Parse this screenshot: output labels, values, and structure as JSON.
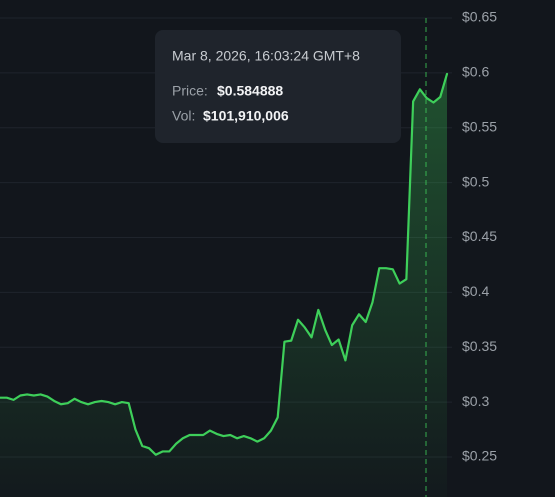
{
  "chart_data": {
    "type": "line",
    "color": "#3ecf5a",
    "values": [
      0.304,
      0.304,
      0.302,
      0.306,
      0.307,
      0.306,
      0.307,
      0.305,
      0.301,
      0.298,
      0.299,
      0.303,
      0.3,
      0.298,
      0.3,
      0.301,
      0.3,
      0.298,
      0.3,
      0.299,
      0.275,
      0.26,
      0.258,
      0.252,
      0.255,
      0.255,
      0.262,
      0.267,
      0.27,
      0.27,
      0.27,
      0.274,
      0.271,
      0.269,
      0.27,
      0.267,
      0.269,
      0.267,
      0.264,
      0.267,
      0.274,
      0.286,
      0.355,
      0.356,
      0.375,
      0.368,
      0.359,
      0.384,
      0.366,
      0.352,
      0.357,
      0.338,
      0.37,
      0.38,
      0.373,
      0.391,
      0.422,
      0.422,
      0.421,
      0.408,
      0.412,
      0.574,
      0.585,
      0.577,
      0.573,
      0.578,
      0.599
    ],
    "ylim": [
      0.2135,
      0.6664
    ],
    "yticks": [
      {
        "value": 0.25,
        "label": "$0.25"
      },
      {
        "value": 0.3,
        "label": "$0.3"
      },
      {
        "value": 0.35,
        "label": "$0.35"
      },
      {
        "value": 0.4,
        "label": "$0.4"
      },
      {
        "value": 0.45,
        "label": "$0.45"
      },
      {
        "value": 0.5,
        "label": "$0.5"
      },
      {
        "value": 0.55,
        "label": "$0.55"
      },
      {
        "value": 0.6,
        "label": "$0.6"
      },
      {
        "value": 0.65,
        "label": "$0.65"
      }
    ],
    "grid": true,
    "tooltip": {
      "time": "Mar 8, 2026, 16:03:24 GMT+8",
      "price_label": "Price:",
      "price": "$0.584888",
      "vol_label": "Vol:",
      "vol": "$101,910,006"
    }
  }
}
